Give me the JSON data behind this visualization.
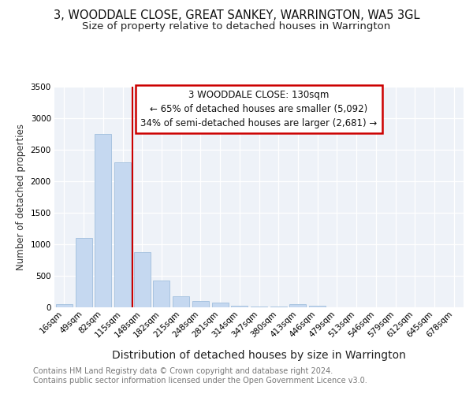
{
  "title": "3, WOODDALE CLOSE, GREAT SANKEY, WARRINGTON, WA5 3GL",
  "subtitle": "Size of property relative to detached houses in Warrington",
  "xlabel": "Distribution of detached houses by size in Warrington",
  "ylabel": "Number of detached properties",
  "categories": [
    "16sqm",
    "49sqm",
    "82sqm",
    "115sqm",
    "148sqm",
    "182sqm",
    "215sqm",
    "248sqm",
    "281sqm",
    "314sqm",
    "347sqm",
    "380sqm",
    "413sqm",
    "446sqm",
    "479sqm",
    "513sqm",
    "546sqm",
    "579sqm",
    "612sqm",
    "645sqm",
    "678sqm"
  ],
  "values": [
    50,
    1100,
    2750,
    2300,
    880,
    430,
    175,
    100,
    75,
    30,
    15,
    10,
    50,
    20,
    3,
    1,
    0,
    0,
    0,
    0,
    0
  ],
  "bar_color": "#c5d8f0",
  "bar_edge_color": "#a8c4e0",
  "vline_x": 3.5,
  "vline_color": "#cc0000",
  "annotation_text": "3 WOODDALE CLOSE: 130sqm\n← 65% of detached houses are smaller (5,092)\n34% of semi-detached houses are larger (2,681) →",
  "annotation_box_color": "#ffffff",
  "annotation_box_edge_color": "#cc0000",
  "ylim": [
    0,
    3500
  ],
  "yticks": [
    0,
    500,
    1000,
    1500,
    2000,
    2500,
    3000,
    3500
  ],
  "plot_bg_color": "#eef2f8",
  "fig_bg_color": "#ffffff",
  "grid_color": "#ffffff",
  "footer_text": "Contains HM Land Registry data © Crown copyright and database right 2024.\nContains public sector information licensed under the Open Government Licence v3.0.",
  "title_fontsize": 10.5,
  "subtitle_fontsize": 9.5,
  "xlabel_fontsize": 10,
  "ylabel_fontsize": 8.5,
  "tick_fontsize": 7.5,
  "annotation_fontsize": 8.5,
  "footer_fontsize": 7
}
